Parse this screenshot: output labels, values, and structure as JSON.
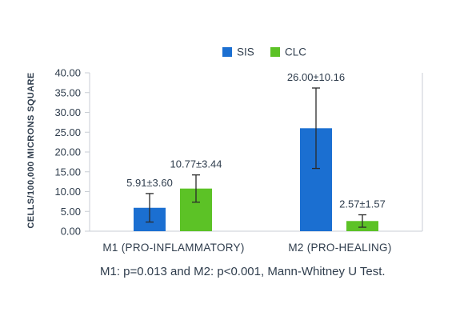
{
  "chart_data": {
    "type": "bar",
    "ylabel": "CELLS/100,000 MICRONS SQUARE",
    "xlabel": "",
    "ylim": [
      0,
      40
    ],
    "y_ticks": [
      "0.00",
      "5.00",
      "10.00",
      "15.00",
      "20.00",
      "25.00",
      "30.00",
      "35.00",
      "40.00"
    ],
    "categories": [
      "M1 (PRO-INFLAMMATORY)",
      "M2 (PRO-HEALING)"
    ],
    "legend_position": "top-center",
    "grid": false,
    "series": [
      {
        "name": "SIS",
        "color": "#1b6fd1",
        "values": [
          5.91,
          26.0
        ],
        "errors": [
          3.6,
          10.16
        ],
        "labels": [
          "5.91±3.60",
          "26.00±10.16"
        ]
      },
      {
        "name": "CLC",
        "color": "#5cc226",
        "values": [
          10.77,
          2.57
        ],
        "errors": [
          3.44,
          1.57
        ],
        "labels": [
          "10.77±3.44",
          "2.57±1.57"
        ]
      }
    ],
    "annotation": "M1: p=0.013 and M2: p<0.001, Mann-Whitney U Test."
  }
}
